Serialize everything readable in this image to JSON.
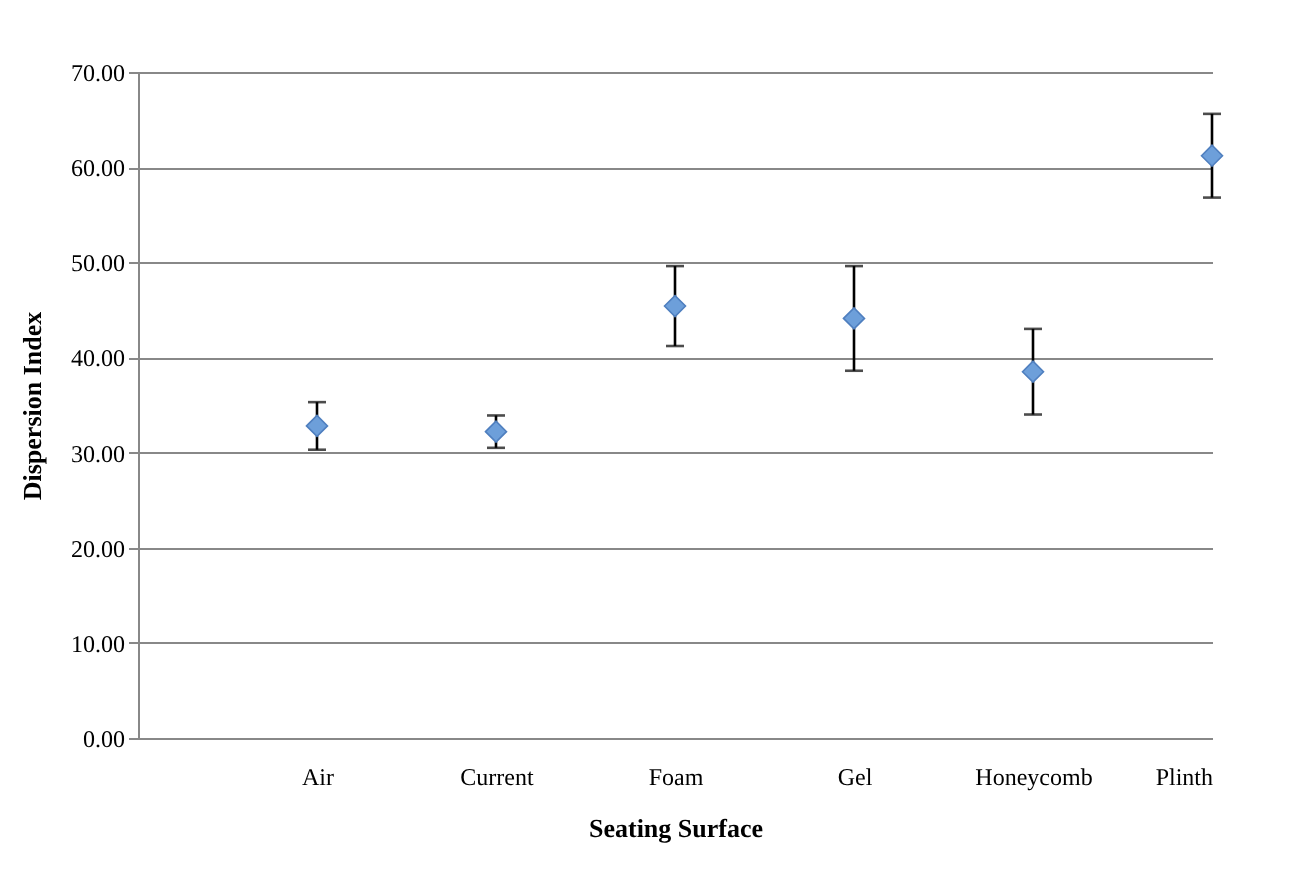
{
  "chart_data": {
    "type": "scatter",
    "xlabel": "Seating Surface",
    "ylabel": "Dispersion Index",
    "categories": [
      "Air",
      "Current",
      "Foam",
      "Gel",
      "Honeycomb",
      "Plinth"
    ],
    "values": [
      32.8,
      32.2,
      45.4,
      44.1,
      38.5,
      61.2
    ],
    "errors": [
      2.5,
      1.7,
      4.2,
      5.5,
      4.5,
      4.4
    ],
    "color": "#6d9fda",
    "marker": "diamond",
    "grid": "y",
    "ylim": [
      0,
      70
    ],
    "yticks": [
      {
        "value": 0,
        "label": "0.00"
      },
      {
        "value": 10,
        "label": "10.00"
      },
      {
        "value": 20,
        "label": "20.00"
      },
      {
        "value": 30,
        "label": "30.00"
      },
      {
        "value": 40,
        "label": "40.00"
      },
      {
        "value": 50,
        "label": "50.00"
      },
      {
        "value": 60,
        "label": "60.00"
      },
      {
        "value": 70,
        "label": "70.00"
      }
    ]
  }
}
